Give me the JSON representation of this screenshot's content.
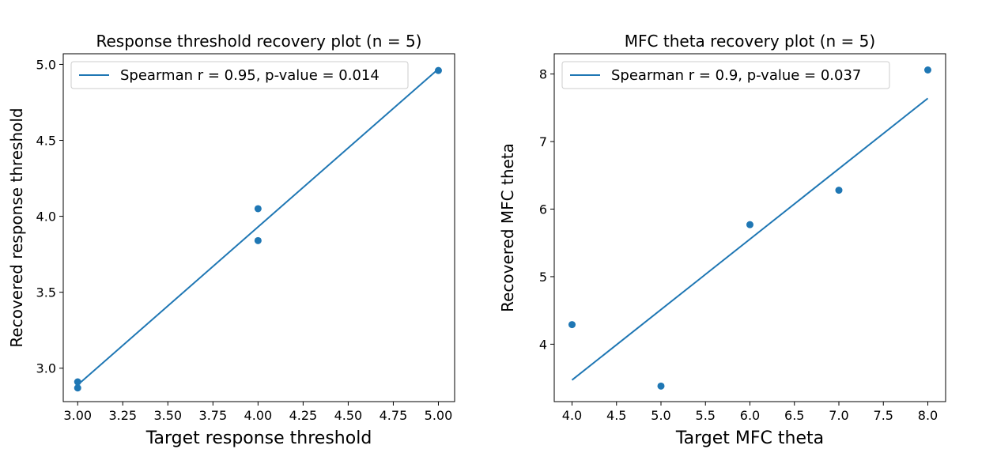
{
  "colors": {
    "series": "#1f77b4",
    "axis": "#000000",
    "legend_border": "#cccccc"
  },
  "chart_data": [
    {
      "type": "scatter",
      "title": "Response threshold recovery plot (n = 5)",
      "xlabel": "Target response threshold",
      "ylabel": "Recovered response threshold",
      "xlim": [
        2.92,
        5.09
      ],
      "ylim": [
        2.78,
        5.07
      ],
      "xticks": [
        "3.00",
        "3.25",
        "3.50",
        "3.75",
        "4.00",
        "4.25",
        "4.50",
        "4.75",
        "5.00"
      ],
      "yticks": [
        "3.0",
        "3.5",
        "4.0",
        "4.5",
        "5.0"
      ],
      "xtick_values": [
        3.0,
        3.25,
        3.5,
        3.75,
        4.0,
        4.25,
        4.5,
        4.75,
        5.0
      ],
      "ytick_values": [
        3.0,
        3.5,
        4.0,
        4.5,
        5.0
      ],
      "points": [
        {
          "x": 3.0,
          "y": 2.91
        },
        {
          "x": 3.0,
          "y": 2.87
        },
        {
          "x": 4.0,
          "y": 4.05
        },
        {
          "x": 4.0,
          "y": 3.84
        },
        {
          "x": 5.0,
          "y": 4.96
        }
      ],
      "fit_line": {
        "x": [
          3.0,
          5.0
        ],
        "y": [
          2.89,
          4.97
        ]
      },
      "legend": "Spearman r = 0.95, p-value = 0.014",
      "legend_position": "top-left",
      "grid": false
    },
    {
      "type": "scatter",
      "title": "MFC theta recovery plot (n = 5)",
      "xlabel": "Target MFC theta",
      "ylabel": "Recovered MFC theta",
      "xlim": [
        3.8,
        8.2
      ],
      "ylim": [
        3.15,
        8.3
      ],
      "xticks": [
        "4.0",
        "4.5",
        "5.0",
        "5.5",
        "6.0",
        "6.5",
        "7.0",
        "7.5",
        "8.0"
      ],
      "yticks": [
        "4",
        "5",
        "6",
        "7",
        "8"
      ],
      "xtick_values": [
        4.0,
        4.5,
        5.0,
        5.5,
        6.0,
        6.5,
        7.0,
        7.5,
        8.0
      ],
      "ytick_values": [
        4,
        5,
        6,
        7,
        8
      ],
      "points": [
        {
          "x": 4.0,
          "y": 4.29
        },
        {
          "x": 5.0,
          "y": 3.38
        },
        {
          "x": 6.0,
          "y": 5.77
        },
        {
          "x": 7.0,
          "y": 6.28
        },
        {
          "x": 8.0,
          "y": 8.06
        }
      ],
      "fit_line": {
        "x": [
          4.0,
          8.0
        ],
        "y": [
          3.47,
          7.64
        ]
      },
      "legend": "Spearman r = 0.9, p-value = 0.037",
      "legend_position": "top-left",
      "grid": false
    }
  ]
}
